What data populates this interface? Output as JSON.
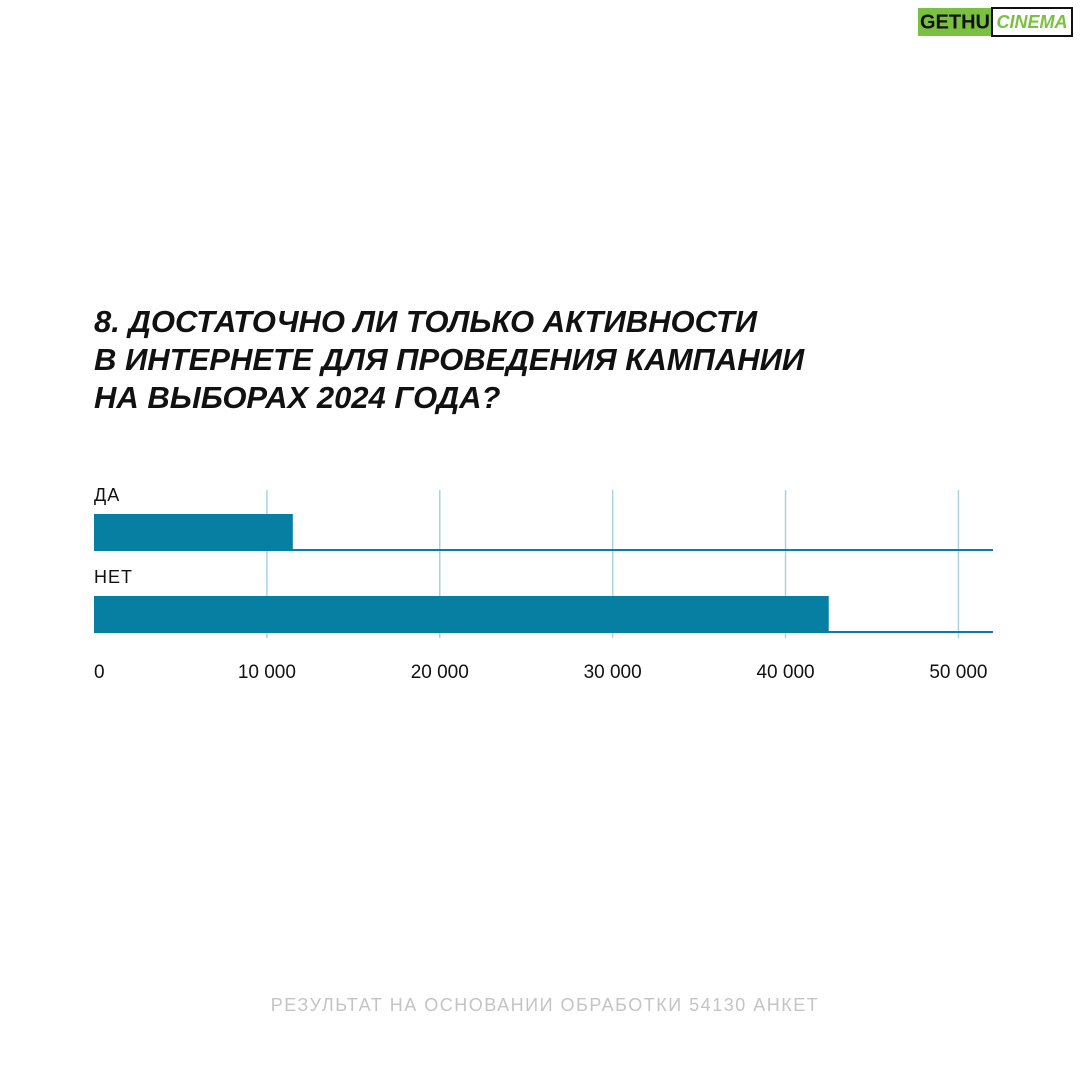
{
  "logo": [
    "GETHU",
    "CINEMA"
  ],
  "chart_data": {
    "type": "bar",
    "orientation": "horizontal",
    "title": [
      "8. ДОСТАТОЧНО ЛИ ТОЛЬКО АКТИВНОСТИ",
      "В ИНТЕРНЕТЕ ДЛЯ ПРОВЕДЕНИЯ КАМПАНИИ",
      "НА ВЫБОРАХ 2024 ГОДА?"
    ],
    "categories": [
      "ДА",
      "НЕТ"
    ],
    "values": [
      11500,
      42500
    ],
    "color": "#077fa3",
    "xlim": [
      0,
      52000
    ],
    "xticks": [
      0,
      {
        "value": 10000,
        "label": "10 000"
      },
      {
        "value": 20000,
        "label": "20 000"
      },
      {
        "value": 30000,
        "label": "30 000"
      },
      {
        "value": 40000,
        "label": "40 000"
      },
      {
        "value": 50000,
        "label": "50 000"
      }
    ],
    "grid": true,
    "grid_color": "#a9d3e2",
    "note": "РЕЗУЛЬТАТ НА ОСНОВАНИИ ОБРАБОТКИ 54130 АНКЕТ"
  }
}
